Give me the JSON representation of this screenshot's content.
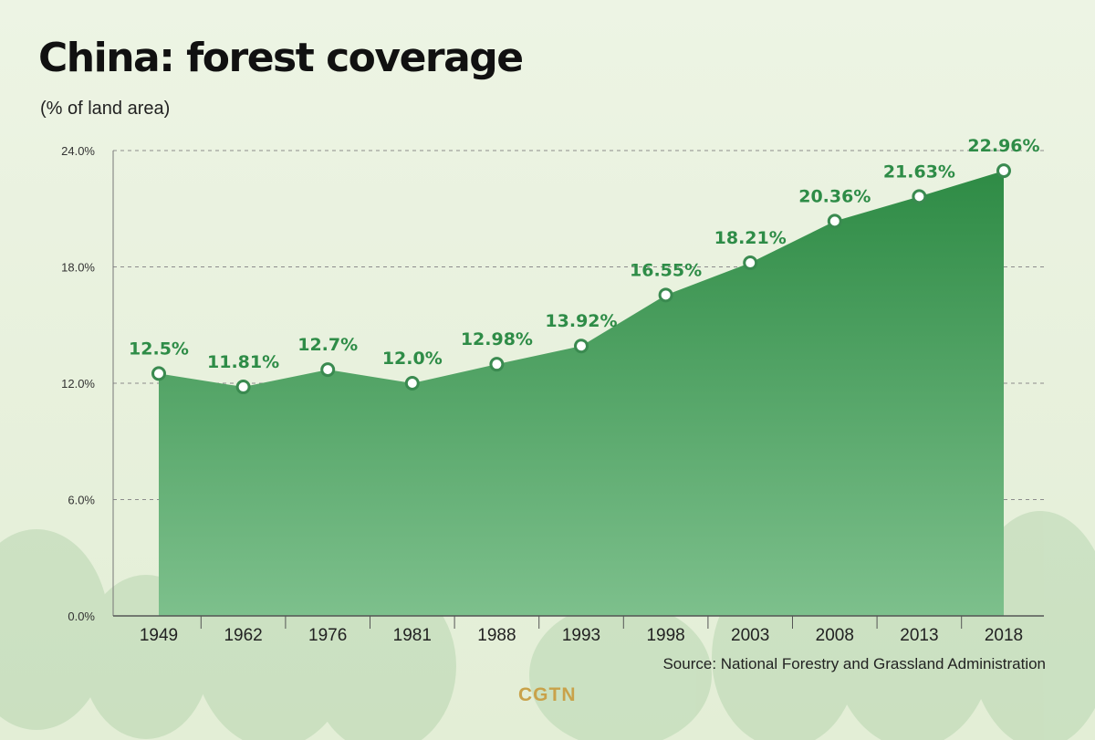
{
  "chart_data": {
    "type": "area",
    "title": "China: forest coverage",
    "subtitle": "(% of land area)",
    "categories": [
      "1949",
      "1962",
      "1976",
      "1981",
      "1988",
      "1993",
      "1998",
      "2003",
      "2008",
      "2013",
      "2018"
    ],
    "values": [
      12.5,
      11.81,
      12.7,
      12.0,
      12.98,
      13.92,
      16.55,
      18.21,
      20.36,
      21.63,
      22.96
    ],
    "data_labels": [
      "12.5%",
      "11.81%",
      "12.7%",
      "12.0%",
      "12.98%",
      "13.92%",
      "16.55%",
      "18.21%",
      "20.36%",
      "21.63%",
      "22.96%"
    ],
    "y_ticks": [
      0,
      6,
      12,
      18,
      24
    ],
    "y_tick_labels": [
      "0.0%",
      "6.0%",
      "12.0%",
      "18.0%",
      "24.0%"
    ],
    "ylim": [
      0,
      24
    ],
    "xlabel": "",
    "ylabel": "",
    "grid": true,
    "source": "Source: National Forestry and Grassland Administration",
    "brand": "CGTN",
    "colors": {
      "area_top": "#2e8b45",
      "area_bottom": "#7dc08c",
      "marker_stroke": "#3a8a50",
      "label": "#2e8c47",
      "background": "#edf4e4",
      "grid": "#8c8c8c"
    }
  }
}
